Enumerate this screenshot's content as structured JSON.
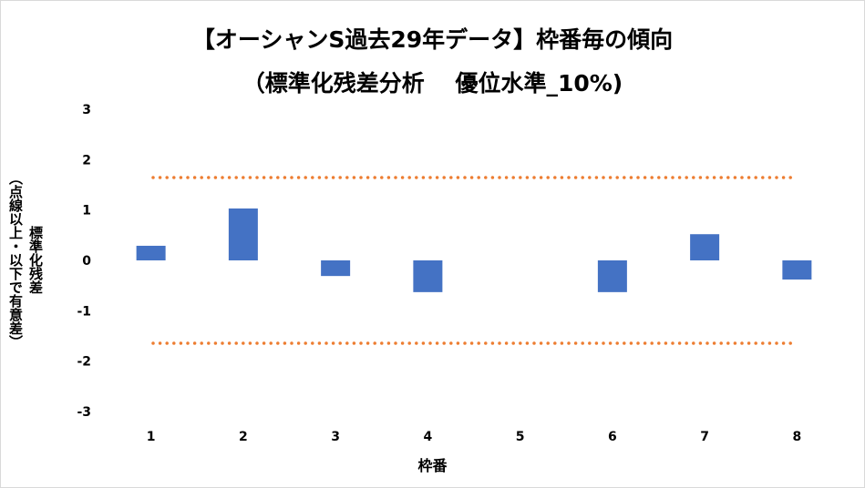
{
  "chart_data": {
    "type": "bar",
    "title": "【オーシャンS過去29年データ】枠番毎の傾向",
    "subtitle": "（標準化残差分析　 優位水準_10%)",
    "xlabel": "枠番",
    "ylabel": "標準化残差",
    "ylabel_note": "（点線以上・以下で有意差）",
    "categories": [
      "1",
      "2",
      "3",
      "4",
      "5",
      "6",
      "7",
      "8"
    ],
    "values": [
      0.29,
      1.03,
      -0.31,
      -0.63,
      0.0,
      -0.63,
      0.52,
      -0.38
    ],
    "ylim": [
      -3,
      3
    ],
    "yticks": [
      3,
      2,
      1,
      0,
      -1,
      -2,
      -3
    ],
    "threshold_lines": [
      1.645,
      -1.645
    ],
    "grid": false,
    "colors": {
      "bar": "#4472c4",
      "threshold": "#ed7d31"
    }
  }
}
